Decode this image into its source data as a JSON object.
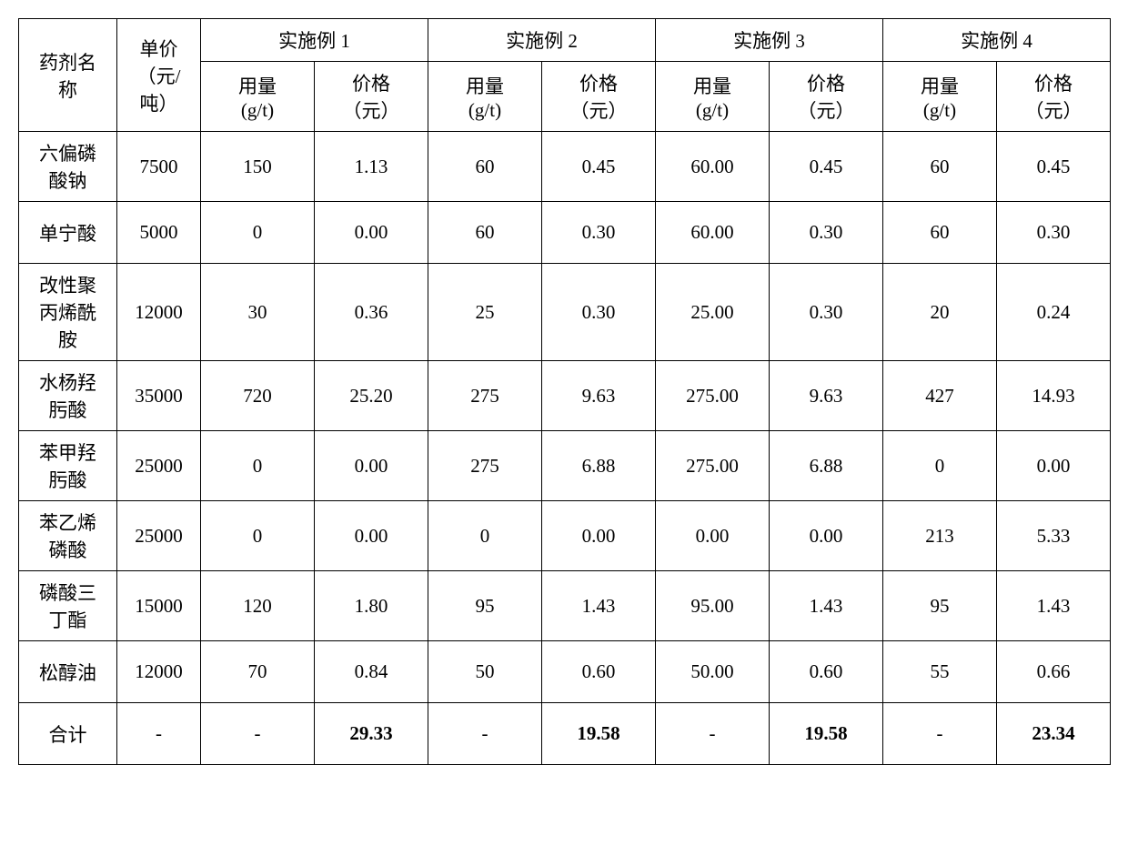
{
  "table": {
    "header": {
      "name_col": "药剂名\n称",
      "unitprice_col": "单价\n（元/\n吨）",
      "groups": [
        "实施例 1",
        "实施例 2",
        "实施例 3",
        "实施例 4"
      ],
      "sub_dosage": "用量\n(g/t)",
      "sub_price": "价格\n（元）"
    },
    "rows": [
      {
        "name": "六偏磷\n酸钠",
        "unit": "7500",
        "e1d": "150",
        "e1p": "1.13",
        "e2d": "60",
        "e2p": "0.45",
        "e3d": "60.00",
        "e3p": "0.45",
        "e4d": "60",
        "e4p": "0.45"
      },
      {
        "name": "单宁酸",
        "unit": "5000",
        "e1d": "0",
        "e1p": "0.00",
        "e2d": "60",
        "e2p": "0.30",
        "e3d": "60.00",
        "e3p": "0.30",
        "e4d": "60",
        "e4p": "0.30"
      },
      {
        "name": "改性聚\n丙烯酰\n胺",
        "unit": "12000",
        "e1d": "30",
        "e1p": "0.36",
        "e2d": "25",
        "e2p": "0.30",
        "e3d": "25.00",
        "e3p": "0.30",
        "e4d": "20",
        "e4p": "0.24"
      },
      {
        "name": "水杨羟\n肟酸",
        "unit": "35000",
        "e1d": "720",
        "e1p": "25.20",
        "e2d": "275",
        "e2p": "9.63",
        "e3d": "275.00",
        "e3p": "9.63",
        "e4d": "427",
        "e4p": "14.93"
      },
      {
        "name": "苯甲羟\n肟酸",
        "unit": "25000",
        "e1d": "0",
        "e1p": "0.00",
        "e2d": "275",
        "e2p": "6.88",
        "e3d": "275.00",
        "e3p": "6.88",
        "e4d": "0",
        "e4p": "0.00"
      },
      {
        "name": "苯乙烯\n磷酸",
        "unit": "25000",
        "e1d": "0",
        "e1p": "0.00",
        "e2d": "0",
        "e2p": "0.00",
        "e3d": "0.00",
        "e3p": "0.00",
        "e4d": "213",
        "e4p": "5.33"
      },
      {
        "name": "磷酸三\n丁酯",
        "unit": "15000",
        "e1d": "120",
        "e1p": "1.80",
        "e2d": "95",
        "e2p": "1.43",
        "e3d": "95.00",
        "e3p": "1.43",
        "e4d": "95",
        "e4p": "1.43"
      },
      {
        "name": "松醇油",
        "unit": "12000",
        "e1d": "70",
        "e1p": "0.84",
        "e2d": "50",
        "e2p": "0.60",
        "e3d": "50.00",
        "e3p": "0.60",
        "e4d": "55",
        "e4p": "0.66"
      }
    ],
    "total": {
      "label": "合计",
      "dash": "-",
      "e1": "29.33",
      "e2": "19.58",
      "e3": "19.58",
      "e4": "23.34"
    }
  }
}
